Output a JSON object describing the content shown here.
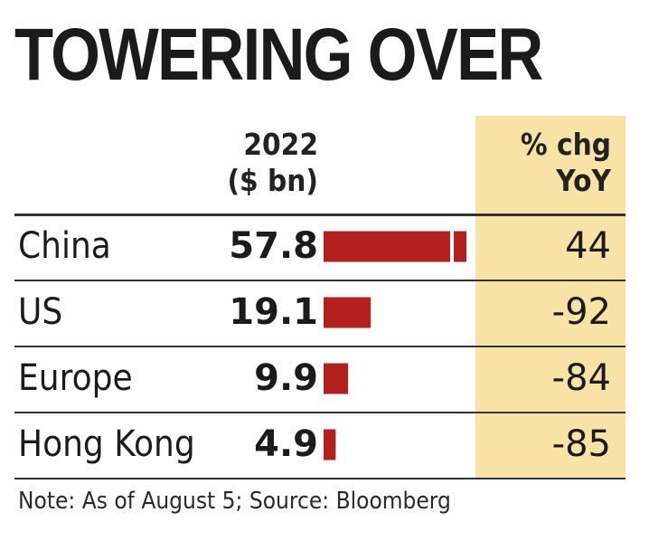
{
  "title": "TOWERING OVER",
  "columns": {
    "value_header_line1": "2022",
    "value_header_line2": "($ bn)",
    "yoy_header_line1": "% chg",
    "yoy_header_line2": "YoY"
  },
  "note": "Note: As of August 5; Source: Bloomberg",
  "colors": {
    "bar": "#b3211e",
    "yoy_band": "#f9e2a6"
  },
  "chart_data": {
    "type": "bar",
    "orientation": "horizontal",
    "title": "TOWERING OVER",
    "categories": [
      "China",
      "US",
      "Europe",
      "Hong Kong"
    ],
    "values": [
      57.8,
      19.1,
      9.9,
      4.9
    ],
    "value_labels": [
      "57.8",
      "19.1",
      "9.9",
      "4.9"
    ],
    "yoy_pct_change": [
      "44",
      "-92",
      "-84",
      "-85"
    ],
    "grid": false
  }
}
